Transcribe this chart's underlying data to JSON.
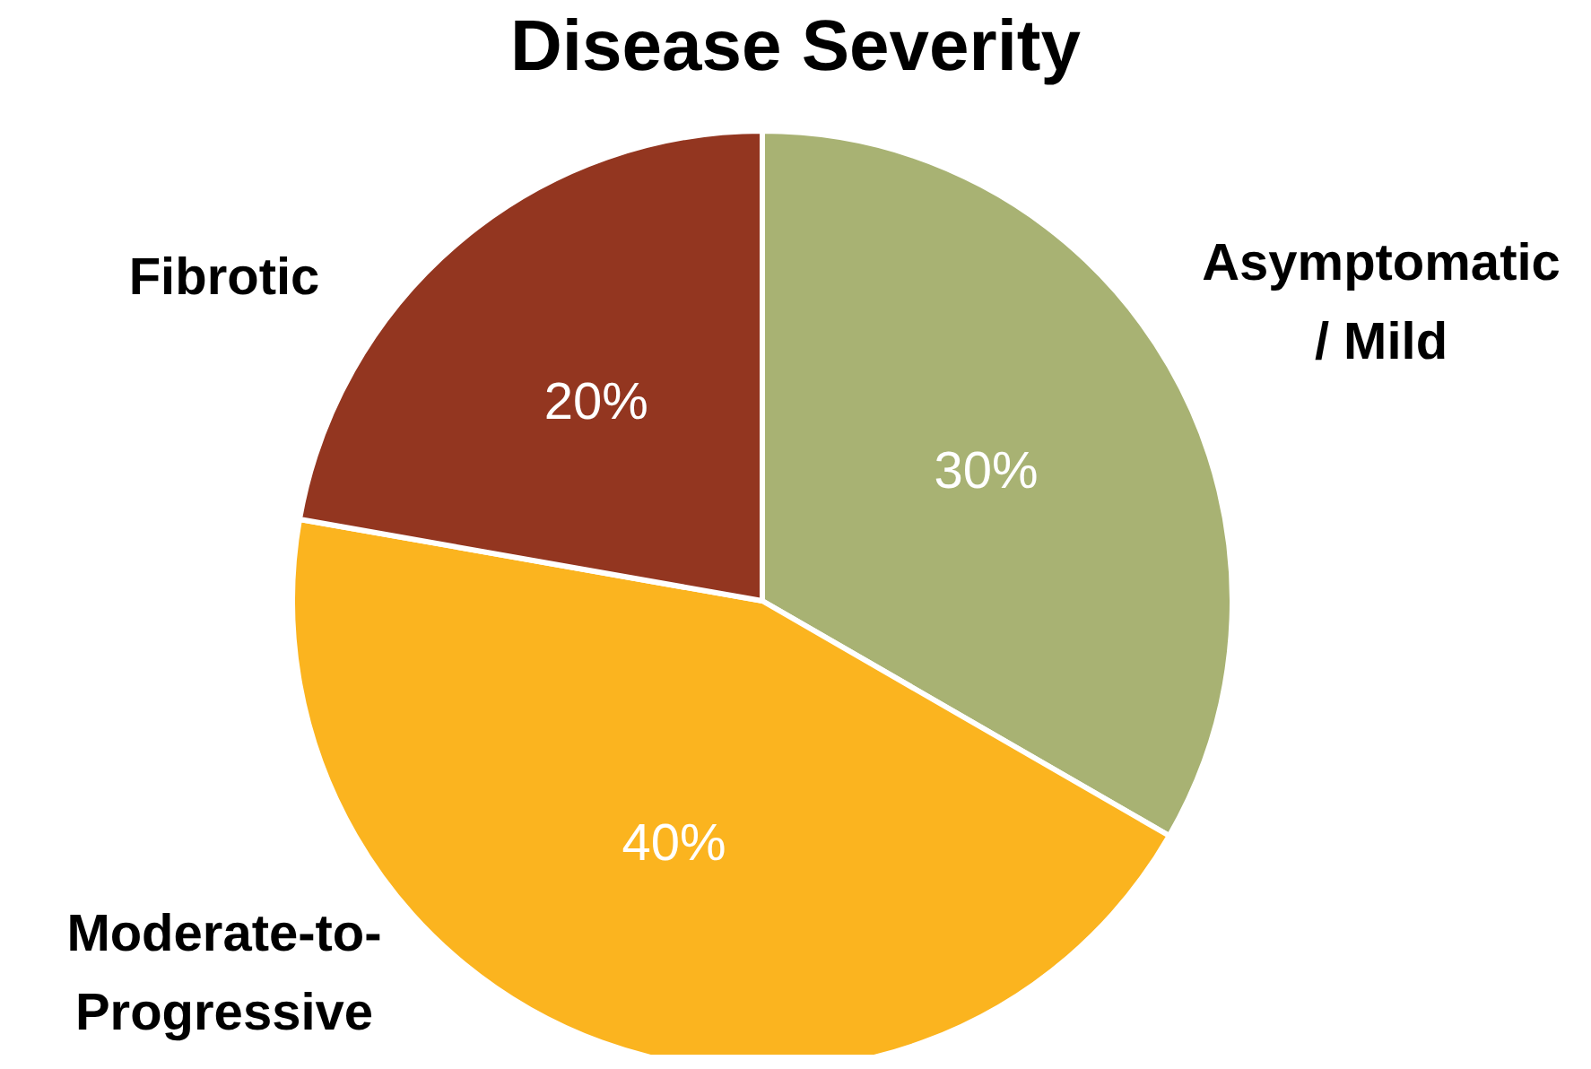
{
  "chart_data": {
    "type": "pie",
    "title": "Disease Severity",
    "categories": [
      "Asymptomatic / Mild",
      "Moderate-to-Progressive",
      "Fibrotic"
    ],
    "values": [
      30,
      40,
      20
    ],
    "value_labels": [
      "30%",
      "40%",
      "20%"
    ],
    "colors": [
      "#a8b273",
      "#fbb41f",
      "#933620"
    ],
    "legend": false
  }
}
